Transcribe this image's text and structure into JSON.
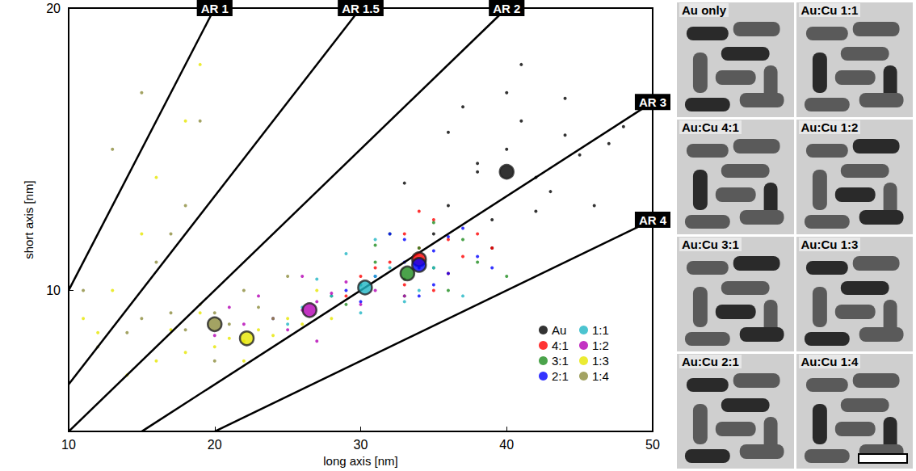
{
  "chart_data": {
    "type": "scatter",
    "xlabel": "long axis [nm]",
    "ylabel": "short axis [nm]",
    "xlim": [
      10,
      50
    ],
    "ylim": [
      5,
      20
    ],
    "xticks": [
      10,
      20,
      30,
      40,
      50
    ],
    "yticks": [
      10,
      20
    ],
    "grid": false,
    "legend": "lower right",
    "marker": "circle",
    "series": [
      {
        "name": "Au",
        "color": "#000000",
        "mean": [
          40,
          14.2
        ],
        "x": [
          36,
          38,
          40,
          42,
          44,
          39,
          41,
          43,
          37,
          45,
          47,
          35,
          33,
          40,
          42,
          38,
          46,
          44,
          41,
          39,
          48,
          36
        ],
        "y": [
          13,
          14.5,
          15,
          14,
          15.5,
          12.5,
          16,
          13.5,
          16.5,
          14.8,
          15.2,
          12,
          13.8,
          17,
          12.8,
          14.2,
          13,
          16.8,
          18,
          11.5,
          15.8,
          15.6
        ]
      },
      {
        "name": "4:1",
        "color": "#ff0000",
        "mean": [
          34,
          11.1
        ],
        "x": [
          30,
          32,
          34,
          36,
          38,
          33,
          35,
          31,
          37,
          34,
          29,
          39,
          35,
          33,
          36
        ],
        "y": [
          10.5,
          11,
          11.5,
          11.8,
          12,
          10.2,
          12.5,
          10.8,
          11.2,
          12.8,
          9.8,
          11.5,
          10,
          12,
          10.6
        ]
      },
      {
        "name": "3:1",
        "color": "#1e8c1e",
        "mean": [
          33.2,
          10.6
        ],
        "x": [
          28,
          30,
          31,
          33,
          34,
          35,
          36,
          32,
          38,
          29,
          33,
          35,
          37,
          31,
          40
        ],
        "y": [
          9.8,
          10.2,
          11,
          10.4,
          11.5,
          10.8,
          10,
          12,
          11,
          9.5,
          9.8,
          12.4,
          11.8,
          11.6,
          10.5
        ]
      },
      {
        "name": "2:1",
        "color": "#0000ff",
        "mean": [
          34,
          10.9
        ],
        "x": [
          29,
          31,
          33,
          34,
          35,
          36,
          38,
          32,
          34,
          37,
          30,
          35,
          39,
          33,
          36
        ],
        "y": [
          10,
          10.5,
          11,
          10.8,
          11.4,
          10.6,
          11.2,
          12,
          9.8,
          12.2,
          9.6,
          10.2,
          10.8,
          11.8,
          11.9
        ]
      },
      {
        "name": "1:1",
        "color": "#1fb5c4",
        "mean": [
          30.3,
          10.1
        ],
        "x": [
          24,
          26,
          28,
          30,
          31,
          32,
          34,
          29,
          27,
          33,
          35,
          30,
          37,
          25,
          31
        ],
        "y": [
          9,
          9.4,
          9.8,
          10.2,
          10.5,
          10.8,
          10,
          11.3,
          10.4,
          9.6,
          10.8,
          9.2,
          9.8,
          8.8,
          11.8
        ]
      },
      {
        "name": "1:2",
        "color": "#b400b4",
        "mean": [
          26.5,
          9.3
        ],
        "x": [
          20,
          22,
          24,
          26,
          27,
          28,
          30,
          25,
          23,
          29,
          31,
          26,
          21,
          27,
          33
        ],
        "y": [
          8.4,
          8.8,
          9,
          9.3,
          9.6,
          9.9,
          9.5,
          8.6,
          9.8,
          10.3,
          10,
          10.5,
          9.4,
          8.2,
          9.8
        ]
      },
      {
        "name": "1:3",
        "color": "#e6e600",
        "mean": [
          22.2,
          8.3
        ],
        "x": [
          14,
          16,
          18,
          20,
          21,
          22,
          23,
          24,
          25,
          26,
          28,
          19,
          17,
          12,
          15,
          18,
          13,
          16,
          11,
          19,
          22,
          27
        ],
        "y": [
          7,
          7.5,
          7.8,
          8,
          8.3,
          8.2,
          8.6,
          8.4,
          9,
          8.8,
          9,
          9.2,
          8.6,
          8.5,
          12,
          16,
          10,
          14,
          9,
          18,
          7.5,
          10
        ]
      },
      {
        "name": "1:4",
        "color": "#8c8c3c",
        "mean": [
          20,
          8.8
        ],
        "x": [
          12,
          14,
          15,
          17,
          18,
          19,
          20,
          21,
          22,
          23,
          24,
          25,
          16,
          18,
          13,
          15,
          17,
          19,
          20,
          11
        ],
        "y": [
          8,
          8.5,
          9,
          9.2,
          8.6,
          9.5,
          9.2,
          8.8,
          10,
          9.4,
          9,
          10.5,
          11,
          13,
          15,
          17,
          12,
          16,
          7.5,
          10
        ]
      }
    ],
    "ar_lines": [
      {
        "label": "AR 1",
        "x": [
          10,
          20
        ],
        "y": [
          10,
          20
        ]
      },
      {
        "label": "AR 1.5",
        "x": [
          10,
          30
        ],
        "y": [
          6.67,
          20
        ]
      },
      {
        "label": "AR 2",
        "x": [
          10,
          40
        ],
        "y": [
          5,
          20
        ]
      },
      {
        "label": "AR 3",
        "x": [
          15,
          50
        ],
        "y": [
          5,
          16.67
        ]
      },
      {
        "label": "AR 4",
        "x": [
          20,
          50
        ],
        "y": [
          5,
          12.5
        ]
      }
    ]
  },
  "images": {
    "columns": [
      [
        "Au only",
        "Au:Cu 4:1",
        "Au:Cu 3:1",
        "Au:Cu 2:1"
      ],
      [
        "Au:Cu 1:1",
        "Au:Cu 1:2",
        "Au:Cu 1:3",
        "Au:Cu 1:4"
      ]
    ]
  }
}
